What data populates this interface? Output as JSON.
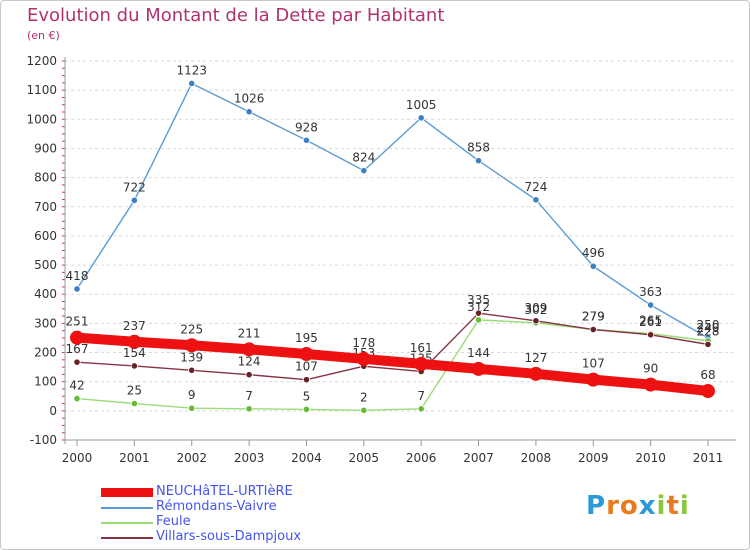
{
  "chart_data": {
    "type": "line",
    "title": "Evolution du Montant de la Dette par Habitant",
    "unit_label": "(en €)",
    "categories": [
      "2000",
      "2001",
      "2002",
      "2003",
      "2004",
      "2005",
      "2006",
      "2007",
      "2008",
      "2009",
      "2010",
      "2011"
    ],
    "ylim": [
      -100,
      1200
    ],
    "y_ticks": [
      -100,
      0,
      100,
      200,
      300,
      400,
      500,
      600,
      700,
      800,
      900,
      1000,
      1100,
      1200
    ],
    "grid": "horizontal dashed",
    "legend_position": "bottom-left",
    "series": [
      {
        "name": "NEUCHâTEL-URTIèRE",
        "color": "#ee1111",
        "emphasis": "thick",
        "values": [
          251,
          237,
          225,
          211,
          195,
          178,
          161,
          144,
          127,
          107,
          90,
          68
        ],
        "value_labels": [
          "251",
          "237",
          "225",
          "211",
          "195",
          "178",
          "161",
          "144",
          "127",
          "107",
          "90",
          "68"
        ]
      },
      {
        "name": "Rémondans-Vaivre",
        "color": "#5b9bd5",
        "marker_color": "#3d7fc4",
        "values": [
          418,
          722,
          1123,
          1026,
          928,
          824,
          1005,
          858,
          724,
          496,
          363,
          250
        ],
        "value_labels": [
          "418",
          "722",
          "1123",
          "1026",
          "928",
          "824",
          "1005",
          "858",
          "724",
          "496",
          "363",
          "250"
        ]
      },
      {
        "name": "Feule",
        "color": "#99dd77",
        "marker_color": "#66bb33",
        "values": [
          42,
          25,
          9,
          7,
          5,
          2,
          7,
          312,
          302,
          279,
          265,
          240
        ],
        "value_labels": [
          "42",
          "25",
          "9",
          "7",
          "5",
          "2",
          "7",
          "312",
          "302",
          "279",
          "265",
          "240"
        ]
      },
      {
        "name": "Villars-sous-Dampjoux",
        "color": "#883344",
        "marker_color": "#662222",
        "values": [
          167,
          154,
          139,
          124,
          107,
          153,
          135,
          335,
          309,
          279,
          261,
          228
        ],
        "value_labels": [
          "167",
          "154",
          "139",
          "124",
          "107",
          "153",
          "135",
          "335",
          "309",
          "279",
          "261",
          "228"
        ]
      }
    ]
  },
  "legend": {
    "items": [
      {
        "label": "NEUCHâTEL-URTIèRE",
        "color": "#ee1111",
        "text_color": "#4455ee"
      },
      {
        "label": "Rémondans-Vaivre",
        "color": "#5b9bd5",
        "text_color": "#4455ee"
      },
      {
        "label": "Feule",
        "color": "#99dd77",
        "text_color": "#4455ee"
      },
      {
        "label": "Villars-sous-Dampjoux",
        "color": "#883344",
        "text_color": "#4455ee"
      }
    ]
  },
  "logo": {
    "text": "Proxiti",
    "letters": [
      {
        "ch": "P",
        "color": "#2a9ad8"
      },
      {
        "ch": "r",
        "color": "#e87b1e"
      },
      {
        "ch": "o",
        "color": "#e87b1e"
      },
      {
        "ch": "x",
        "color": "#2a9ad8"
      },
      {
        "ch": "i",
        "color": "#8cc63f"
      },
      {
        "ch": "t",
        "color": "#e87b1e"
      },
      {
        "ch": "i",
        "color": "#8cc63f"
      }
    ]
  }
}
